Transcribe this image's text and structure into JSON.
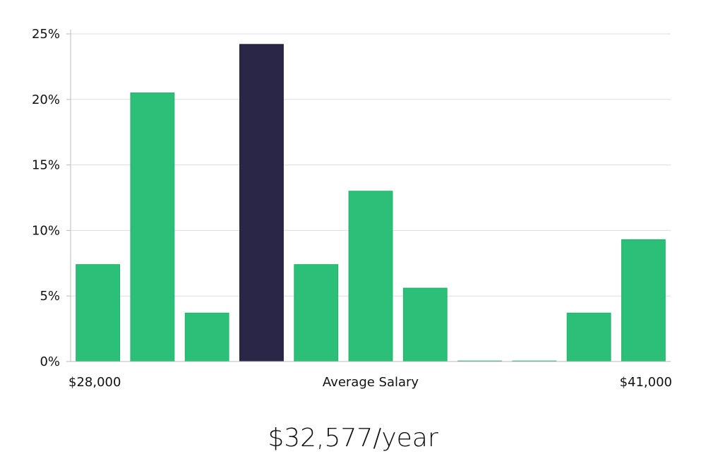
{
  "chart_data": {
    "type": "bar",
    "title": "",
    "categories": [
      "",
      "",
      "",
      "",
      "",
      "",
      "",
      "",
      "",
      "",
      ""
    ],
    "values": [
      7.4,
      20.5,
      3.7,
      24.2,
      7.4,
      13.0,
      5.6,
      0.0,
      0.0,
      3.7,
      9.3
    ],
    "highlight_index": 3,
    "xlabel": "Average Salary",
    "x_range_labels": [
      "$28,000",
      "$41,000"
    ],
    "ylabel": "",
    "ylim": [
      0,
      25
    ],
    "yticks": [
      0,
      5,
      10,
      15,
      20,
      25
    ],
    "ytick_labels": [
      "0%",
      "5%",
      "10%",
      "15%",
      "20%",
      "25%"
    ],
    "grid": true,
    "legend": false,
    "colors": {
      "bar": "#2bbf77",
      "highlight": "#2a2647",
      "grid": "#dddddd",
      "axis": "#bbbbbb"
    }
  },
  "summary": "$32,577/year"
}
